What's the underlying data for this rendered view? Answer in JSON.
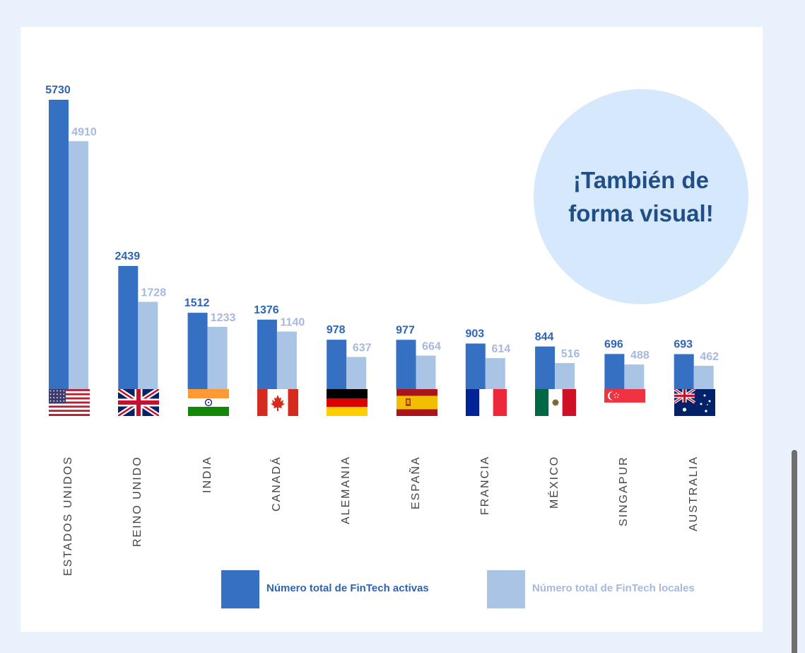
{
  "callout": {
    "text": "¡También de forma visual!"
  },
  "colors": {
    "total": "#3570c2",
    "local": "#a9c4e4",
    "total_label": "#2d65b5",
    "local_label": "#a7b8e0",
    "bubble": "#d6e8fb"
  },
  "chart_data": {
    "type": "bar",
    "categories": [
      "ESTADOS UNIDOS",
      "REINO UNIDO",
      "INDIA",
      "CANADÁ",
      "ALEMANIA",
      "ESPAÑA",
      "FRANCIA",
      "MÉXICO",
      "SINGAPUR",
      "AUSTRALIA"
    ],
    "series": [
      {
        "name": "Número total de FinTech activas",
        "values": [
          5730,
          2439,
          1512,
          1376,
          978,
          977,
          903,
          844,
          696,
          693
        ]
      },
      {
        "name": "Número total de FinTech locales",
        "values": [
          4910,
          1728,
          1233,
          1140,
          637,
          664,
          614,
          516,
          488,
          462
        ]
      }
    ],
    "flags": [
      "us-flag-icon",
      "uk-flag-icon",
      "india-flag-icon",
      "canada-flag-icon",
      "germany-flag-icon",
      "spain-flag-icon",
      "france-flag-icon",
      "mexico-flag-icon",
      "singapore-flag-icon",
      "australia-flag-icon"
    ],
    "title": "",
    "xlabel": "",
    "ylabel": "",
    "ylim": [
      0,
      5730
    ],
    "grid": false,
    "legend": "bottom-right",
    "data_labels": true
  }
}
